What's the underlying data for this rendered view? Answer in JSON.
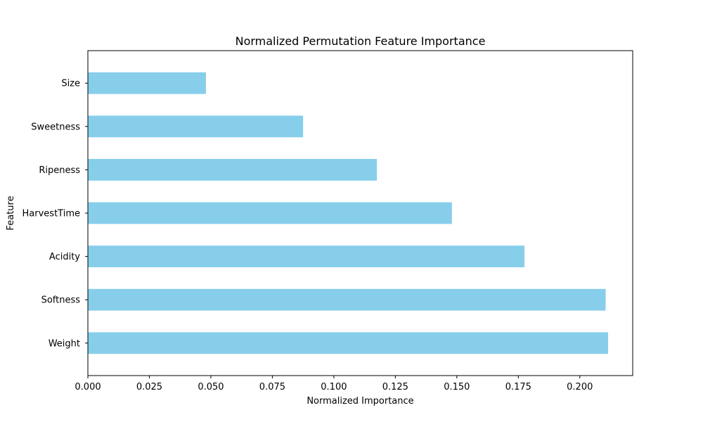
{
  "chart_data": {
    "type": "bar",
    "orientation": "horizontal",
    "title": "Normalized Permutation Feature Importance",
    "xlabel": "Normalized Importance",
    "ylabel": "Feature",
    "categories": [
      "Weight",
      "Softness",
      "Acidity",
      "HarvestTime",
      "Ripeness",
      "Sweetness",
      "Size"
    ],
    "values": [
      0.2115,
      0.2105,
      0.1775,
      0.148,
      0.1175,
      0.0875,
      0.048
    ],
    "xlim": [
      0,
      0.2215
    ],
    "xticks": [
      0.0,
      0.025,
      0.05,
      0.075,
      0.1,
      0.125,
      0.15,
      0.175,
      0.2
    ],
    "xtick_labels": [
      "0.000",
      "0.025",
      "0.050",
      "0.075",
      "0.100",
      "0.125",
      "0.150",
      "0.175",
      "0.200"
    ],
    "grid": false,
    "legend": "none",
    "bar_color": "#87ceeb"
  }
}
